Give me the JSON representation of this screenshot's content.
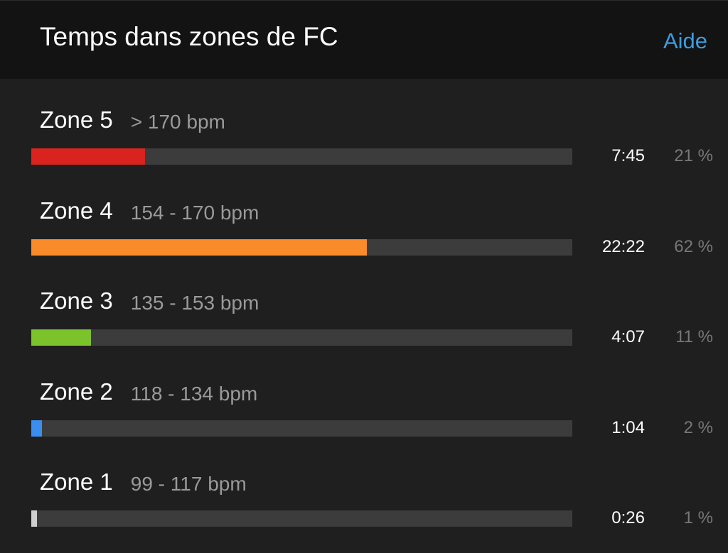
{
  "header": {
    "title": "Temps dans zones de FC",
    "help": "Aide"
  },
  "zones": [
    {
      "name": "Zone 5",
      "range": "> 170 bpm",
      "time": "7:45",
      "percent": 21,
      "percent_label": "21 %",
      "color": "#d8231f"
    },
    {
      "name": "Zone 4",
      "range": "154 - 170 bpm",
      "time": "22:22",
      "percent": 62,
      "percent_label": "62 %",
      "color": "#f98b2b"
    },
    {
      "name": "Zone 3",
      "range": "135 - 153 bpm",
      "time": "4:07",
      "percent": 11,
      "percent_label": "11 %",
      "color": "#7cc22a"
    },
    {
      "name": "Zone 2",
      "range": "118 - 134 bpm",
      "time": "1:04",
      "percent": 2,
      "percent_label": "2 %",
      "color": "#3a8ef0"
    },
    {
      "name": "Zone 1",
      "range": "99 - 117 bpm",
      "time": "0:26",
      "percent": 1,
      "percent_label": "1 %",
      "color": "#cfcfcf"
    }
  ]
}
